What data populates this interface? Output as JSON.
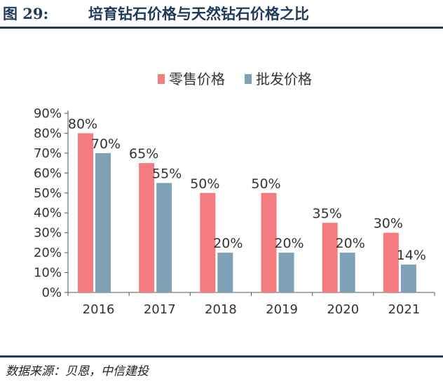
{
  "figure": {
    "label": "图 29:",
    "title": "培育钻石价格与天然钻石价格之比",
    "source": "数据来源：贝恩，中信建投"
  },
  "colors": {
    "retail": "#f47c80",
    "wholesale": "#7fa1b6",
    "rule": "#1f3a5a"
  },
  "chart_data": {
    "type": "bar",
    "categories": [
      "2016",
      "2017",
      "2018",
      "2019",
      "2020",
      "2021"
    ],
    "series": [
      {
        "name": "零售价格",
        "values": [
          80,
          65,
          50,
          50,
          35,
          30
        ],
        "labels": [
          "80%",
          "65%",
          "50%",
          "50%",
          "35%",
          "30%"
        ]
      },
      {
        "name": "批发价格",
        "values": [
          70,
          55,
          20,
          20,
          20,
          14
        ],
        "labels": [
          "70%",
          "55%",
          "20%",
          "20%",
          "20%",
          "14%"
        ]
      }
    ],
    "yticks": [
      "0%",
      "10%",
      "20%",
      "30%",
      "40%",
      "50%",
      "60%",
      "70%",
      "80%",
      "90%"
    ],
    "ylim": [
      0,
      90
    ],
    "legend_position": "top-center",
    "grid": false
  }
}
